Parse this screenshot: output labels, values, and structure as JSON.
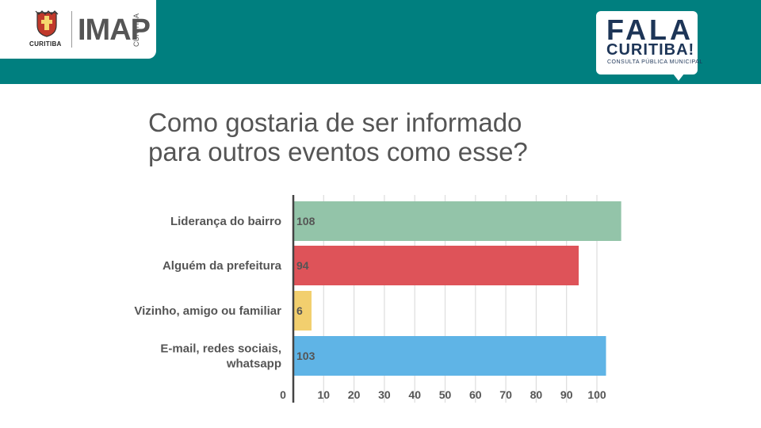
{
  "header": {
    "city_name": "CURITIBA",
    "imap_word": "IMAP",
    "imap_side": "CURITIBA",
    "fala_line1": "FALA",
    "fala_line2": "CURITIBA!",
    "fala_line3": "CONSULTA PÚBLICA MUNICIPAL",
    "colors": {
      "header": "#007f7f",
      "fala_text": "#1d3557"
    }
  },
  "title": {
    "line1": "Como gostaria de ser informado",
    "line2": "para outros eventos como esse?"
  },
  "chart_data": {
    "type": "bar",
    "orientation": "horizontal",
    "title": "Como gostaria de ser informado para outros eventos como esse?",
    "categories": [
      [
        "Liderança do bairro"
      ],
      [
        "Alguém da prefeitura"
      ],
      [
        "Vizinho, amigo ou familiar"
      ],
      [
        "E-mail, redes sociais,",
        "whatsapp"
      ]
    ],
    "values": [
      108,
      94,
      6,
      103
    ],
    "colors": [
      "#93c4a9",
      "#de5359",
      "#f2cf6e",
      "#5fb4e6"
    ],
    "xlim": [
      0,
      110
    ],
    "xticks": [
      0,
      10,
      20,
      30,
      40,
      50,
      60,
      70,
      80,
      90,
      100
    ],
    "grid": true,
    "legend": "none",
    "xlabel": "",
    "ylabel": ""
  }
}
